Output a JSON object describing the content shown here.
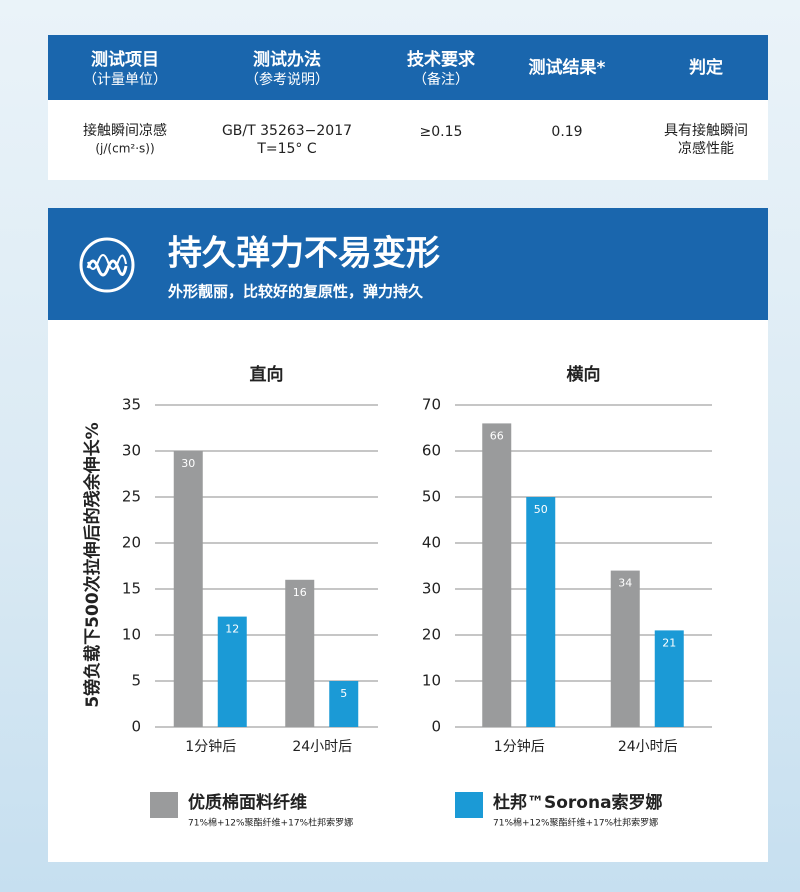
{
  "table": {
    "header": [
      {
        "title": "测试项目",
        "sub": "（计量单位）"
      },
      {
        "title": "测试办法",
        "sub": "（参考说明）"
      },
      {
        "title": "技术要求",
        "sub": "（备注）"
      },
      {
        "title": "测试结果*"
      },
      {
        "title": "判定"
      }
    ],
    "rows": [
      [
        [
          "接触瞬间凉感",
          "(j/(cm²·s))"
        ],
        [
          "GB/T 35263−2017",
          "T=15° C"
        ],
        [
          "≥0.15"
        ],
        [
          "0.19"
        ],
        [
          "具有接触瞬间",
          "凉感性能"
        ]
      ]
    ]
  },
  "section": {
    "title": "持久弹力不易变形",
    "subtitle": "外形靓丽，比较好的复原性，弹力持久"
  },
  "chart_data": [
    {
      "type": "bar",
      "title": "直向",
      "y_label": "5镑负载下500次拉伸后的残余伸长%",
      "categories": [
        "1分钟后",
        "24小时后"
      ],
      "series": [
        {
          "name": "优质棉面料纤维",
          "note": "71%棉+12%聚酯纤维+17%杜邦索罗娜",
          "color": "#9a9b9c",
          "values": [
            30,
            16
          ]
        },
        {
          "name": "杜邦™Sorona索罗娜",
          "note": "71%棉+12%聚酯纤维+17%杜邦索罗娜",
          "color": "#1b9ad6",
          "values": [
            12,
            5
          ]
        }
      ],
      "ylim": [
        0,
        35
      ],
      "yticks": [
        0,
        5,
        10,
        15,
        20,
        25,
        30,
        35
      ],
      "grid": true
    },
    {
      "type": "bar",
      "title": "横向",
      "categories": [
        "1分钟后",
        "24小时后"
      ],
      "series": [
        {
          "name": "优质棉面料纤维",
          "color": "#9a9b9c",
          "values": [
            66,
            34
          ]
        },
        {
          "name": "杜邦™Sorona索罗娜",
          "color": "#1b9ad6",
          "values": [
            50,
            21
          ]
        }
      ],
      "ylim": [
        0,
        70
      ],
      "yticks": [
        0,
        10,
        20,
        30,
        40,
        50,
        60,
        70
      ],
      "grid": true
    }
  ]
}
